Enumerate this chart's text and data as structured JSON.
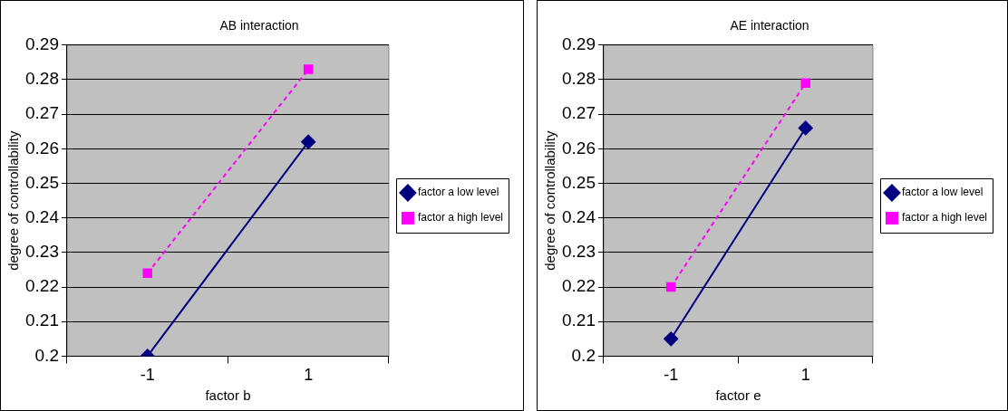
{
  "chart_data": [
    {
      "type": "line",
      "title": "AB interaction",
      "xlabel": "factor b",
      "ylabel": "degree of controllability",
      "categories": [
        "-1",
        "1"
      ],
      "ylim": [
        0.2,
        0.29
      ],
      "yticks": [
        0.2,
        0.21,
        0.22,
        0.23,
        0.24,
        0.25,
        0.26,
        0.27,
        0.28,
        0.29
      ],
      "grid": "y",
      "legend": "right",
      "series": [
        {
          "name": "factor a low level",
          "color": "#000080",
          "marker": "diamond",
          "line_style": "solid",
          "values": [
            0.2,
            0.262
          ]
        },
        {
          "name": "factor a high level",
          "color": "#ff00ff",
          "marker": "square",
          "line_style": "dashed",
          "values": [
            0.224,
            0.283
          ]
        }
      ]
    },
    {
      "type": "line",
      "title": "AE interaction",
      "xlabel": "factor e",
      "ylabel": "degree of controllability",
      "categories": [
        "-1",
        "1"
      ],
      "ylim": [
        0.2,
        0.29
      ],
      "yticks": [
        0.2,
        0.21,
        0.22,
        0.23,
        0.24,
        0.25,
        0.26,
        0.27,
        0.28,
        0.29
      ],
      "grid": "y",
      "legend": "right",
      "series": [
        {
          "name": "factor a low level",
          "color": "#000080",
          "marker": "diamond",
          "line_style": "solid",
          "values": [
            0.205,
            0.266
          ]
        },
        {
          "name": "factor a high level",
          "color": "#ff00ff",
          "marker": "square",
          "line_style": "dashed",
          "values": [
            0.22,
            0.279
          ]
        }
      ]
    }
  ]
}
